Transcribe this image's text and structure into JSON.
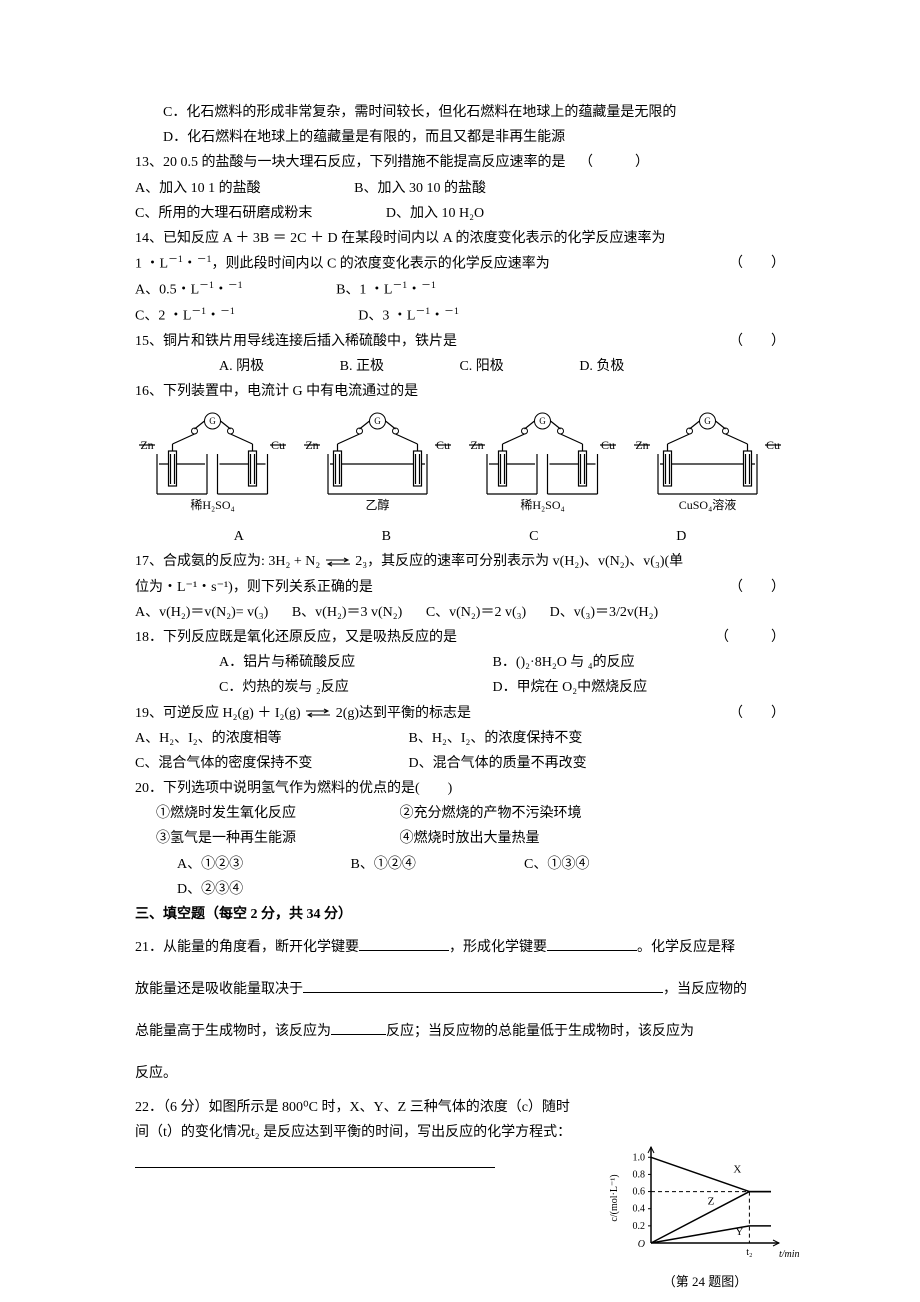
{
  "q12": {
    "c": "C．化石燃料的形成非常复杂，需时间较长，但化石燃料在地球上的蕴藏量是无限的",
    "d": "D．化石燃料在地球上的蕴藏量是有限的，而且又都是非再生能源"
  },
  "q13": {
    "stem": "13、20 0.5 的盐酸与一块大理石反应，下列措施不能提高反应速率的是",
    "paren": "（　　　）",
    "a": "A、加入 10 1 的盐酸",
    "b": "B、加入 30 10 的盐酸",
    "c": "C、所用的大理石研磨成粉末",
    "d": "D、加入 10 H₂O"
  },
  "q14": {
    "stem1": "14、已知反应 A ＋ 3B ＝ 2C ＋ D 在某段时间内以 A 的浓度变化表示的化学反应速率为",
    "stem2_pre": "1 ・L",
    "stem2_mid": "・",
    "stem2_post": "，则此段时间内以 C 的浓度变化表示的化学反应速率为",
    "paren": "（　　）",
    "a_pre": "A、0.5・L",
    "b_pre": "B、1 ・L",
    "c_pre": "C、2 ・L",
    "d_pre": "D、3 ・L",
    "unit_sup1": "－1",
    "unit_mid": "・",
    "unit_sup2": "－1"
  },
  "q15": {
    "stem": "15、铜片和铁片用导线连接后插入稀硫酸中，铁片是",
    "paren": "（　　）",
    "a": "A. 阴极",
    "b": "B. 正极",
    "c": "C. 阳极",
    "d": "D. 负极"
  },
  "q16": {
    "stem": "16、下列装置中，电流计 G 中有电流通过的是",
    "labels": [
      "稀H₂SO₄",
      "乙醇",
      "稀H₂SO₄",
      "CuSO₄溶液"
    ],
    "letters": [
      "A",
      "B",
      "C",
      "D"
    ],
    "electrodes": {
      "left": "Zn",
      "right": "Cu"
    },
    "separate": [
      true,
      false,
      true,
      false
    ]
  },
  "q17": {
    "stem_pre": "17、合成氨的反应为: 3H₂ + N₂ ",
    "stem_post": " 2₃，其反应的速率可分别表示为 v(H₂)、v(N₂)、v(₃)(单",
    "stem2": "位为・L⁻¹・s⁻¹)，则下列关系正确的是",
    "paren": "（　　）",
    "a": "A、v(H₂)＝v(N₂)= v(₃)",
    "b": "B、v(H₂)＝3 v(N₂)",
    "c": "C、v(N₂)＝2 v(₃)",
    "d": "D、v(₃)＝3/2v(H₂)"
  },
  "q18": {
    "stem": "18．下列反应既是氧化还原反应，又是吸热反应的是",
    "paren": "（　　　）",
    "a": "A．铝片与稀硫酸反应",
    "b": "B．()₂·8H₂O 与 ₄的反应",
    "c": "C．灼热的炭与 ₂反应",
    "d": "D．甲烷在 O₂中燃烧反应"
  },
  "q19": {
    "stem_pre": "19、可逆反应 H₂(g) ＋ I₂(g) ",
    "stem_post": " 2(g)达到平衡的标志是",
    "paren": "（　　）",
    "a": "A、H₂、I₂、的浓度相等",
    "b": "B、H₂、I₂、的浓度保持不变",
    "c": "C、混合气体的密度保持不变",
    "d": "D、混合气体的质量不再改变"
  },
  "q20": {
    "stem": "20．下列选项中说明氢气作为燃料的优点的是(　　)",
    "i1": "①燃烧时发生氧化反应",
    "i2": "②充分燃烧的产物不污染环境",
    "i3": "③氢气是一种再生能源",
    "i4": "④燃烧时放出大量热量",
    "a": "A、①②③",
    "b": "B、①②④",
    "c": "C、①③④",
    "d": "D、②③④"
  },
  "section3": "三、填空题（每空 2 分，共 34 分）",
  "q21": {
    "p1a": "21．从能量的角度看，断开化学键要",
    "p1b": "，形成化学键要",
    "p1c": "。化学反应是释",
    "p2a": "放能量还是吸收能量取决于",
    "p2b": "，当反应物的",
    "p3a": "总能量高于生成物时，该反应为",
    "p3b": "反应；当反应物的总能量低于生成物时，该反应为",
    "p4": "反应。"
  },
  "q22": {
    "stem1": "22．（6 分）如图所示是 800⁰C 时，X、Y、Z 三种气体的浓度（c）随时",
    "stem2": "间（t）的变化情况t₂ 是反应达到平衡的时间，写出反应的化学方程式：",
    "caption": "（第 24 题图）",
    "graph": {
      "bg": "#ffffff",
      "axis_color": "#000000",
      "ylabel": "c/(mol·L⁻¹)",
      "xlabel": "t/min",
      "yticks": [
        "0.2",
        "0.4",
        "0.6",
        "0.8",
        "1.0"
      ],
      "yvalues": [
        0.2,
        0.4,
        0.6,
        0.8,
        1.0
      ],
      "ymax": 1.05,
      "series": {
        "X": {
          "y0": 1.0,
          "y1": 0.6,
          "color": "#000000"
        },
        "Z": {
          "y0": 0.0,
          "y1": 0.6,
          "color": "#000000"
        },
        "Y": {
          "y0": 0.0,
          "y1": 0.2,
          "color": "#000000"
        }
      },
      "dash_y": 0.6,
      "t2_label": "t₂"
    }
  }
}
